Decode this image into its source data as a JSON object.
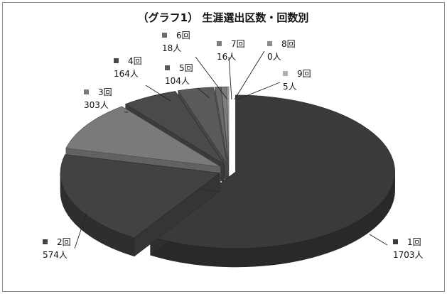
{
  "chart_data": {
    "type": "pie",
    "title": "（グラフ1） 生涯選出区数・回数別",
    "categories": [
      "1回",
      "2回",
      "3回",
      "4回",
      "5回",
      "6回",
      "7回",
      "8回",
      "9回"
    ],
    "values": [
      1703,
      574,
      303,
      164,
      104,
      18,
      16,
      0,
      5
    ],
    "value_labels": [
      "1703人",
      "574人",
      "303人",
      "164人",
      "104人",
      "18人",
      "16人",
      "0人",
      "5人"
    ],
    "colors": [
      "#3a3a3a",
      "#424242",
      "#7a7a7a",
      "#4a4a4a",
      "#5a5a5a",
      "#6a6a6a",
      "#7c7c7c",
      "#8c8c8c",
      "#b0b0b0"
    ],
    "exploded": true,
    "style": "3d"
  }
}
